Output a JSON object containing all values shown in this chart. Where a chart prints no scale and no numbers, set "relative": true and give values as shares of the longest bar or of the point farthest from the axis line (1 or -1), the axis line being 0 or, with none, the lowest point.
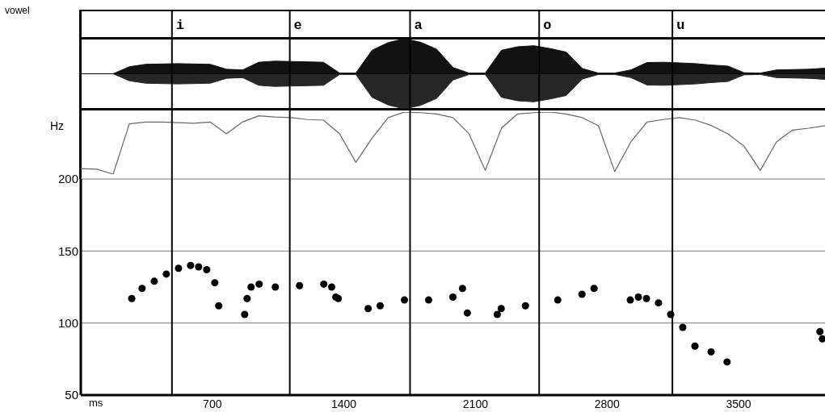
{
  "chart_data": [
    {
      "type": "area",
      "relative": true,
      "annotations": [
        "vowel"
      ],
      "tick_labels": false,
      "categories": [
        null,
        null,
        null,
        null,
        null,
        null,
        null,
        null,
        null,
        null,
        null,
        null,
        null,
        null,
        null,
        null,
        null,
        null,
        null,
        null,
        null,
        null,
        null,
        null,
        null,
        null,
        null,
        null,
        null,
        null,
        null,
        null,
        null,
        null,
        null,
        null,
        null,
        null,
        null,
        null,
        null,
        null,
        null,
        null,
        null,
        null,
        null
      ],
      "series": [
        {
          "color": "#111111",
          "values": [
            0,
            0,
            0,
            0.2,
            0.27,
            0.28,
            0.29,
            0.28,
            0.27,
            0.13,
            0.11,
            0.33,
            0.36,
            0.35,
            0.34,
            0.33,
            0.02,
            0.02,
            0.67,
            0.89,
            1,
            0.9,
            0.7,
            0.18,
            0.02,
            0.02,
            0.67,
            0.77,
            0.8,
            0.72,
            0.62,
            0.15,
            0.02,
            0.02,
            0.11,
            0.32,
            0.33,
            0.31,
            0.29,
            0.25,
            0.22,
            0.03,
            0.02,
            0.11,
            0.12,
            0.13,
            0.16
          ]
        },
        {
          "color": "#262626",
          "values": [
            0,
            0,
            0,
            -0.2,
            -0.27,
            -0.28,
            -0.29,
            -0.28,
            -0.27,
            -0.13,
            -0.11,
            -0.33,
            -0.36,
            -0.35,
            -0.34,
            -0.33,
            -0.02,
            -0.02,
            -0.67,
            -0.89,
            -1,
            -0.9,
            -0.7,
            -0.18,
            -0.02,
            -0.02,
            -0.67,
            -0.77,
            -0.8,
            -0.72,
            -0.62,
            -0.15,
            -0.02,
            -0.02,
            -0.11,
            -0.32,
            -0.33,
            -0.31,
            -0.29,
            -0.25,
            -0.22,
            -0.03,
            -0.02,
            -0.11,
            -0.12,
            -0.13,
            -0.16
          ]
        }
      ]
    },
    {
      "type": "line",
      "relative": true,
      "tick_labels": false,
      "categories": [
        null,
        null,
        null,
        null,
        null,
        null,
        null,
        null,
        null,
        null,
        null,
        null,
        null,
        null,
        null,
        null,
        null,
        null,
        null,
        null,
        null,
        null,
        null,
        null,
        null,
        null,
        null,
        null,
        null,
        null,
        null,
        null,
        null,
        null,
        null,
        null,
        null,
        null,
        null,
        null,
        null,
        null,
        null,
        null,
        null,
        null,
        null
      ],
      "series": [
        {
          "color": "#666666",
          "values": [
            0.09,
            0.08,
            0,
            0.81,
            0.84,
            0.84,
            0.83,
            0.82,
            0.84,
            0.65,
            0.84,
            0.94,
            0.92,
            0.91,
            0.88,
            0.87,
            0.65,
            0.19,
            0.58,
            0.91,
            1,
            0.99,
            0.97,
            0.91,
            0.65,
            0.06,
            0.74,
            0.97,
            0.99,
            1,
            0.97,
            0.91,
            0.78,
            0.04,
            0.52,
            0.84,
            0.88,
            0.91,
            0.87,
            0.78,
            0.65,
            0.45,
            0.06,
            0.52,
            0.71,
            0.74,
            0.78
          ]
        }
      ]
    },
    {
      "type": "scatter",
      "ylabel": "Hz",
      "xlabel": "ms",
      "xlim": [
        0,
        3960
      ],
      "xticks": [
        700,
        1400,
        2100,
        2800,
        3500
      ],
      "ylim": [
        50,
        200
      ],
      "yticks": [
        50,
        100,
        150,
        200
      ],
      "grid": "y",
      "marker": "circle",
      "ref_lines": [
        {
          "axis": "x",
          "value": 485,
          "label": "i",
          "color": "#000000"
        },
        {
          "axis": "x",
          "value": 1112,
          "label": "e",
          "color": "#000000"
        },
        {
          "axis": "x",
          "value": 1752,
          "label": "a",
          "color": "#000000"
        },
        {
          "axis": "x",
          "value": 2439,
          "label": "o",
          "color": "#000000"
        },
        {
          "axis": "x",
          "value": 3148,
          "label": "u",
          "color": "#000000"
        }
      ],
      "series": [
        {
          "color": "#000000",
          "x": [
            271,
            326,
            391,
            455,
            520,
            584,
            627,
            670,
            713,
            734,
            872,
            885,
            906,
            949,
            1035,
            1164,
            1293,
            1335,
            1357,
            1370,
            1529,
            1593,
            1722,
            1851,
            1980,
            2031,
            2057,
            2216,
            2237,
            2366,
            2538,
            2667,
            2731,
            2924,
            2967,
            3010,
            3074,
            3139,
            3203,
            3268,
            3354,
            3439,
            3933,
            3946
          ],
          "values": [
            117,
            124,
            129,
            134,
            138,
            140,
            139,
            137,
            128,
            112,
            106,
            117,
            125,
            127,
            125,
            126,
            127,
            125,
            118,
            117,
            110,
            112,
            116,
            116,
            118,
            124,
            107,
            106,
            110,
            112,
            116,
            120,
            124,
            116,
            118,
            117,
            114,
            106,
            97,
            84,
            80,
            73,
            94,
            89
          ]
        }
      ]
    }
  ]
}
